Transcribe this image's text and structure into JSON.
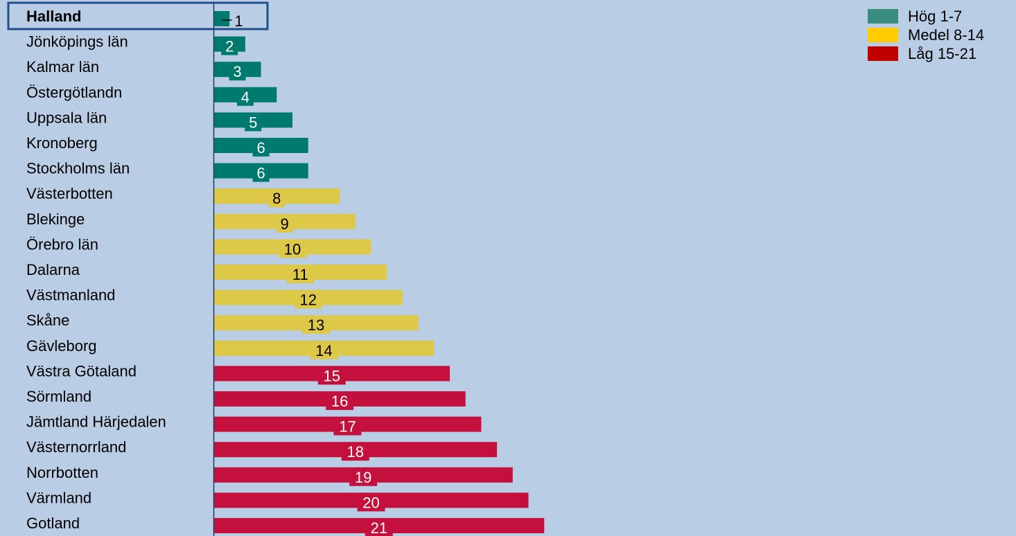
{
  "chart_data": {
    "type": "bar",
    "orientation": "horizontal",
    "categories": [
      "Halland",
      "Jönköpings län",
      "Kalmar län",
      "Östergötlandn",
      "Uppsala län",
      "Kronoberg",
      "Stockholms län",
      "Västerbotten",
      "Blekinge",
      "Örebro län",
      "Dalarna",
      "Västmanland",
      "Skåne",
      "Gävleborg",
      "Västra Götaland",
      "Sörmland",
      "Jämtland Härjedalen",
      "Västernorrland",
      "Norrbotten",
      "Värmland",
      "Gotland"
    ],
    "values": [
      1,
      2,
      3,
      4,
      5,
      6,
      6,
      8,
      9,
      10,
      11,
      12,
      13,
      14,
      15,
      16,
      17,
      18,
      19,
      20,
      21
    ],
    "highlighted_category": "Halland",
    "legend_position": "top-right",
    "groups": [
      {
        "label": "Hög 1-7",
        "min": 1,
        "max": 7,
        "bar_color": "#007a6e",
        "swatch_color": "#3a8c80",
        "text_color": "#ffffff"
      },
      {
        "label": "Medel 8-14",
        "min": 8,
        "max": 14,
        "bar_color": "#dec848",
        "swatch_color": "#ffcc00",
        "text_color": "#000000"
      },
      {
        "label": "Låg 15-21",
        "min": 15,
        "max": 21,
        "bar_color": "#c4103c",
        "swatch_color": "#c00000",
        "text_color": "#ffffff"
      }
    ],
    "colors": {
      "background": "#b9cde4",
      "axis": "#1f3a5a",
      "highlight_box": "#1f4e8c"
    }
  }
}
